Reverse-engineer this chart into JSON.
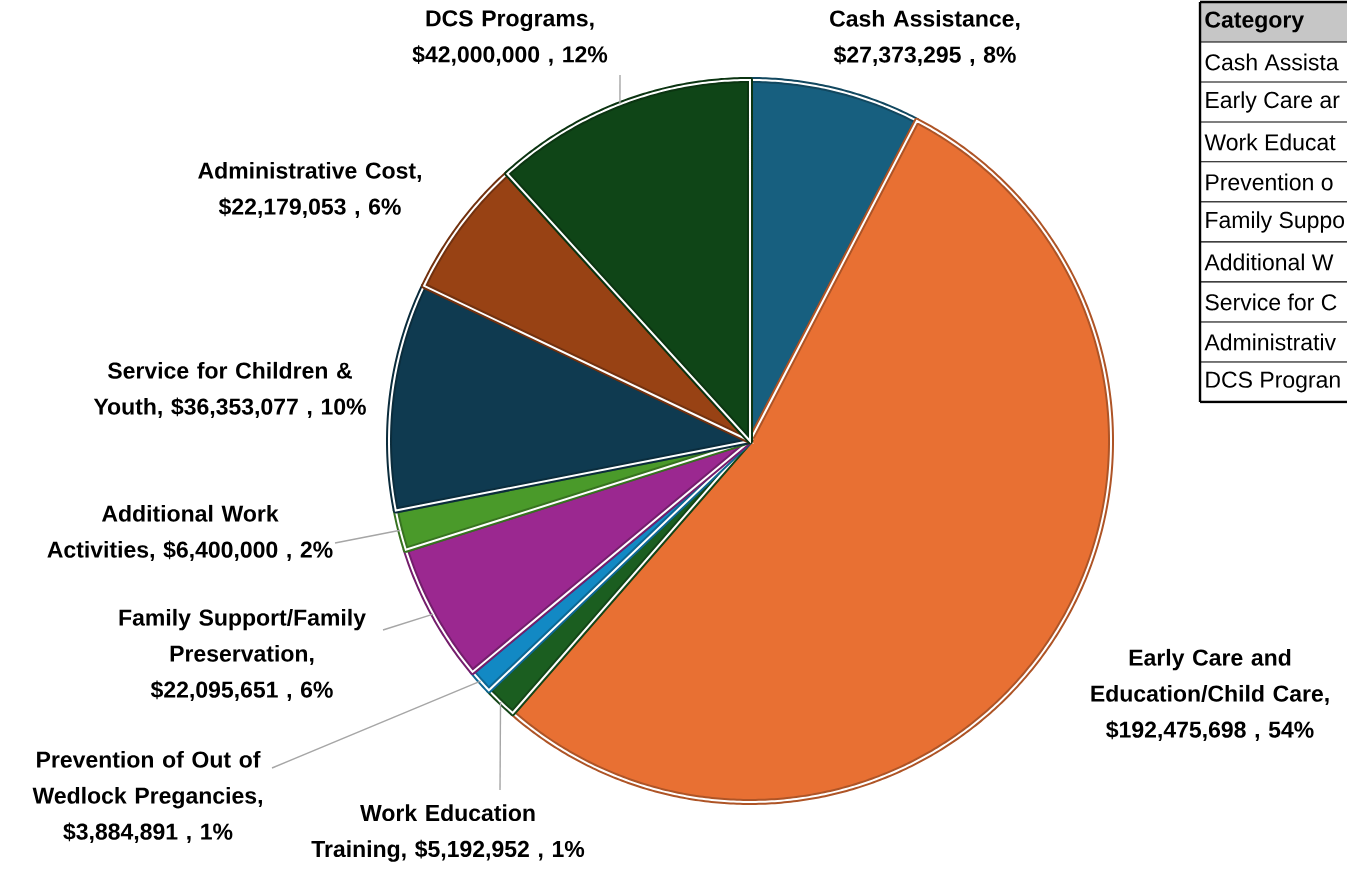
{
  "chart_data": [
    {
      "type": "pie",
      "categories": [
        "Cash Assistance",
        "Early Care and Education/Child Care",
        "Work Education Training",
        "Prevention of Out of Wedlock Pregancies",
        "Family Support/Family Preservation",
        "Additional Work Activities",
        "Service for Children & Youth",
        "Administrative Cost",
        "DCS Programs"
      ],
      "values": [
        27373295,
        192475698,
        5192952,
        3884891,
        22095651,
        6400000,
        36353077,
        22179053,
        42000000
      ],
      "colors": [
        "#175f7f",
        "#e87033",
        "#1b5e20",
        "#1289c4",
        "#9b2890",
        "#4a9a2a",
        "#0f3a50",
        "#984214",
        "#0f4517"
      ],
      "value_labels": [
        ", $27,373,295 , 8%",
        ", $192,475,698 , 54%",
        ", $5,192,952 , 1%",
        ", $3,884,891 , 1%",
        ", $22,095,651 , 6%",
        ", $6,400,000 , 2%",
        ", $36,353,077 , 10%",
        ", $22,179,053 , 6%",
        ", $42,000,000 , 12%"
      ]
    },
    {
      "type": "other",
      "title": "Category",
      "annotations": [
        "Cash Assista",
        "Early Care ar",
        "Work Educat",
        "Prevention o",
        "Family Suppo",
        "Additional W",
        "Service for C",
        "Administrativ",
        "DCS Progran"
      ]
    }
  ]
}
